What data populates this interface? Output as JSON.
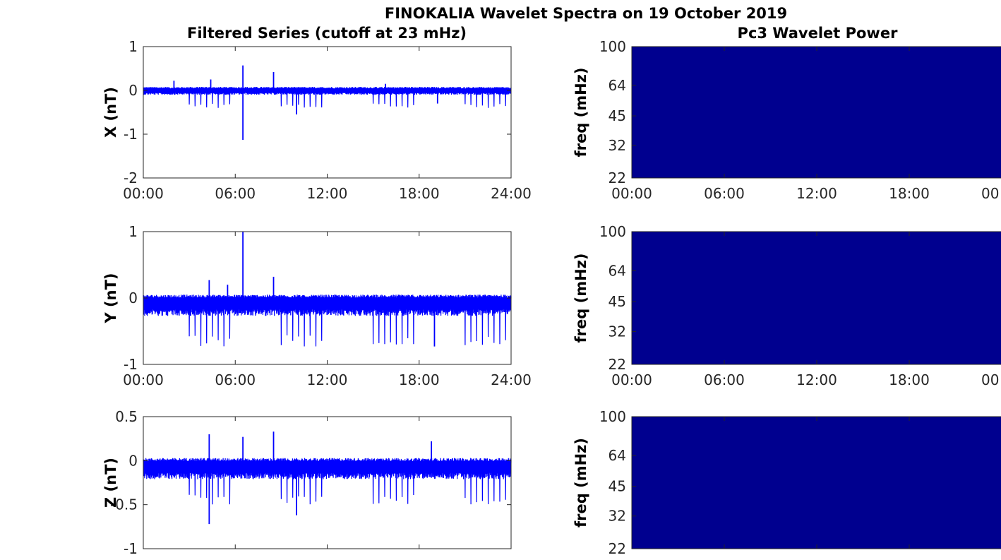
{
  "figure": {
    "title": "FINOKALIA Wavelet Spectra on 19 October 2019",
    "left_title": "Filtered Series (cutoff at 23 mHz)",
    "right_title": "Pc3 Wavelet Power"
  },
  "colors": {
    "series": "#0000ff",
    "wavelet_fill": "#00008f",
    "axis": "#262626"
  },
  "chart_data": [
    {
      "type": "line",
      "component": "X",
      "ylabel": "X (nT)",
      "ylim": [
        -2,
        1
      ],
      "yticks": [
        -2,
        -1,
        0,
        1
      ],
      "ytick_labels": [
        "-2",
        "-1",
        "0",
        "1"
      ],
      "xlim_hours": [
        0,
        24
      ],
      "xticks": [
        "00:00",
        "06:00",
        "12:00",
        "18:00",
        "24:00"
      ],
      "show_xtick_labels": true,
      "baseline": 0.0,
      "band": [
        -0.1,
        0.08
      ],
      "dip_low": -0.4,
      "dip_count": 64,
      "spikes": [
        [
          2.0,
          0.22
        ],
        [
          4.4,
          0.25
        ],
        [
          6.5,
          0.57
        ],
        [
          6.5,
          -1.13
        ],
        [
          8.5,
          0.42
        ],
        [
          10.0,
          -0.55
        ],
        [
          15.8,
          0.15
        ],
        [
          19.2,
          -0.3
        ]
      ],
      "series": [
        {
          "values_desc": "filtered X component"
        }
      ]
    },
    {
      "type": "line",
      "component": "Y",
      "ylabel": "Y (nT)",
      "ylim": [
        -1,
        1
      ],
      "yticks": [
        -1,
        0,
        1
      ],
      "ytick_labels": [
        "-1",
        "0",
        "1"
      ],
      "xlim_hours": [
        0,
        24
      ],
      "xticks": [
        "00:00",
        "06:00",
        "12:00",
        "18:00",
        "24:00"
      ],
      "show_xtick_labels": true,
      "baseline": -0.05,
      "band": [
        -0.22,
        0.1
      ],
      "dip_low": -0.68,
      "dip_count": 64,
      "spikes": [
        [
          4.3,
          0.27
        ],
        [
          5.5,
          0.2
        ],
        [
          6.5,
          1.0
        ],
        [
          8.5,
          0.32
        ],
        [
          19.0,
          -0.73
        ]
      ],
      "series": [
        {
          "values_desc": "filtered Y component"
        }
      ]
    },
    {
      "type": "line",
      "component": "Z",
      "ylabel": "Z (nT)",
      "ylim": [
        -1,
        0.5
      ],
      "yticks": [
        -1,
        -0.5,
        0,
        0.5
      ],
      "ytick_labels": [
        "-1",
        "-0.5",
        "0",
        "0.5"
      ],
      "xlim_hours": [
        0,
        24
      ],
      "xticks": [
        "00:00",
        "06:00",
        "12:00",
        "18:00",
        "24:00"
      ],
      "show_xtick_labels": false,
      "baseline": -0.05,
      "band": [
        -0.16,
        0.08
      ],
      "dip_low": -0.45,
      "dip_count": 64,
      "spikes": [
        [
          4.3,
          0.3
        ],
        [
          6.5,
          0.27
        ],
        [
          8.5,
          0.33
        ],
        [
          4.3,
          -0.72
        ],
        [
          10.0,
          -0.62
        ],
        [
          18.8,
          0.22
        ]
      ],
      "series": [
        {
          "values_desc": "filtered Z component"
        }
      ]
    },
    {
      "type": "heatmap",
      "ylabel": "freq (mHz)",
      "ytick_labels": [
        "100",
        "64",
        "45",
        "32",
        "22"
      ],
      "yticks_mhz": [
        100,
        64,
        45,
        32,
        22
      ],
      "ylim_mhz": [
        22,
        100
      ],
      "y_scale": "log",
      "xticks": [
        "00:00",
        "06:00",
        "12:00",
        "18:00",
        "00"
      ],
      "show_xtick_labels": true,
      "power": "uniform low"
    },
    {
      "type": "heatmap",
      "ylabel": "freq (mHz)",
      "ytick_labels": [
        "100",
        "64",
        "45",
        "32",
        "22"
      ],
      "yticks_mhz": [
        100,
        64,
        45,
        32,
        22
      ],
      "ylim_mhz": [
        22,
        100
      ],
      "y_scale": "log",
      "xticks": [
        "00:00",
        "06:00",
        "12:00",
        "18:00",
        "00"
      ],
      "show_xtick_labels": true,
      "power": "uniform low"
    },
    {
      "type": "heatmap",
      "ylabel": "freq (mHz)",
      "ytick_labels": [
        "100",
        "64",
        "45",
        "32",
        "22"
      ],
      "yticks_mhz": [
        100,
        64,
        45,
        32,
        22
      ],
      "ylim_mhz": [
        22,
        100
      ],
      "y_scale": "log",
      "xticks": [],
      "show_xtick_labels": false,
      "power": "uniform low"
    }
  ]
}
